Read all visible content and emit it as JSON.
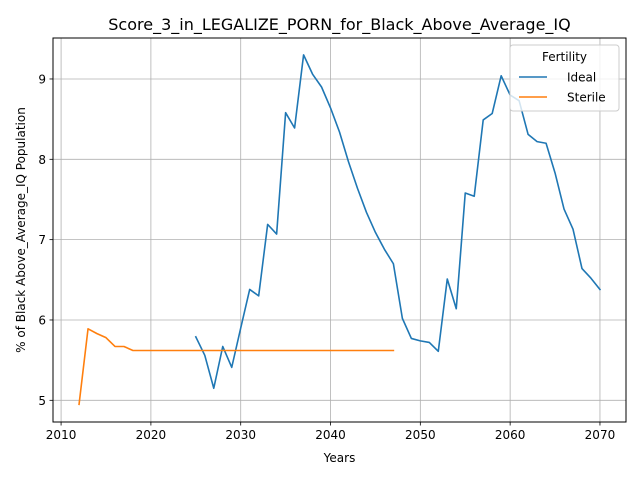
{
  "chart_data": {
    "type": "line",
    "title": "Score_3_in_LEGALIZE_PORN_for_Black_Above_Average_IQ",
    "xlabel": "Years",
    "ylabel": "% of Black Above_Average_IQ Population",
    "xlim": [
      2009.1,
      2072.9
    ],
    "ylim": [
      4.73,
      9.51
    ],
    "xticks": [
      2010,
      2020,
      2030,
      2040,
      2050,
      2060,
      2070
    ],
    "yticks": [
      5,
      6,
      7,
      8,
      9
    ],
    "grid": true,
    "legend": {
      "title": "Fertility",
      "position": "top-right"
    },
    "series": [
      {
        "name": "Ideal",
        "color": "#1f77b4",
        "x": [
          2025,
          2026,
          2027,
          2028,
          2029,
          2030,
          2031,
          2032,
          2033,
          2034,
          2035,
          2036,
          2037,
          2038,
          2039,
          2040,
          2041,
          2042,
          2043,
          2044,
          2045,
          2046,
          2047,
          2048,
          2049,
          2050,
          2051,
          2052,
          2053,
          2054,
          2055,
          2056,
          2057,
          2058,
          2059,
          2060,
          2061,
          2062,
          2063,
          2064,
          2065,
          2066,
          2067,
          2068,
          2069,
          2070
        ],
        "y": [
          5.79,
          5.56,
          5.15,
          5.67,
          5.41,
          5.9,
          6.38,
          6.3,
          7.19,
          7.07,
          8.58,
          8.39,
          9.3,
          9.06,
          8.9,
          8.64,
          8.34,
          7.97,
          7.64,
          7.34,
          7.09,
          6.88,
          6.7,
          6.02,
          5.77,
          5.74,
          5.72,
          5.61,
          6.51,
          6.14,
          7.58,
          7.54,
          8.49,
          8.57,
          9.04,
          8.8,
          8.73,
          8.31,
          8.22,
          8.2,
          7.83,
          7.38,
          7.13,
          6.64,
          6.52,
          6.38
        ]
      },
      {
        "name": "Sterile",
        "color": "#ff7f0e",
        "x": [
          2012,
          2013,
          2014,
          2015,
          2016,
          2017,
          2018,
          2019,
          2020,
          2021,
          2022,
          2023,
          2024,
          2025,
          2026,
          2027,
          2028,
          2029,
          2030,
          2031,
          2032,
          2033,
          2034,
          2035,
          2036,
          2037,
          2038,
          2039,
          2040,
          2041,
          2042,
          2043,
          2044,
          2045,
          2046,
          2047
        ],
        "y": [
          4.95,
          5.89,
          5.83,
          5.78,
          5.67,
          5.67,
          5.62,
          5.62,
          5.62,
          5.62,
          5.62,
          5.62,
          5.62,
          5.62,
          5.62,
          5.62,
          5.62,
          5.62,
          5.62,
          5.62,
          5.62,
          5.62,
          5.62,
          5.62,
          5.62,
          5.62,
          5.62,
          5.62,
          5.62,
          5.62,
          5.62,
          5.62,
          5.62,
          5.62,
          5.62,
          5.62
        ]
      }
    ]
  }
}
